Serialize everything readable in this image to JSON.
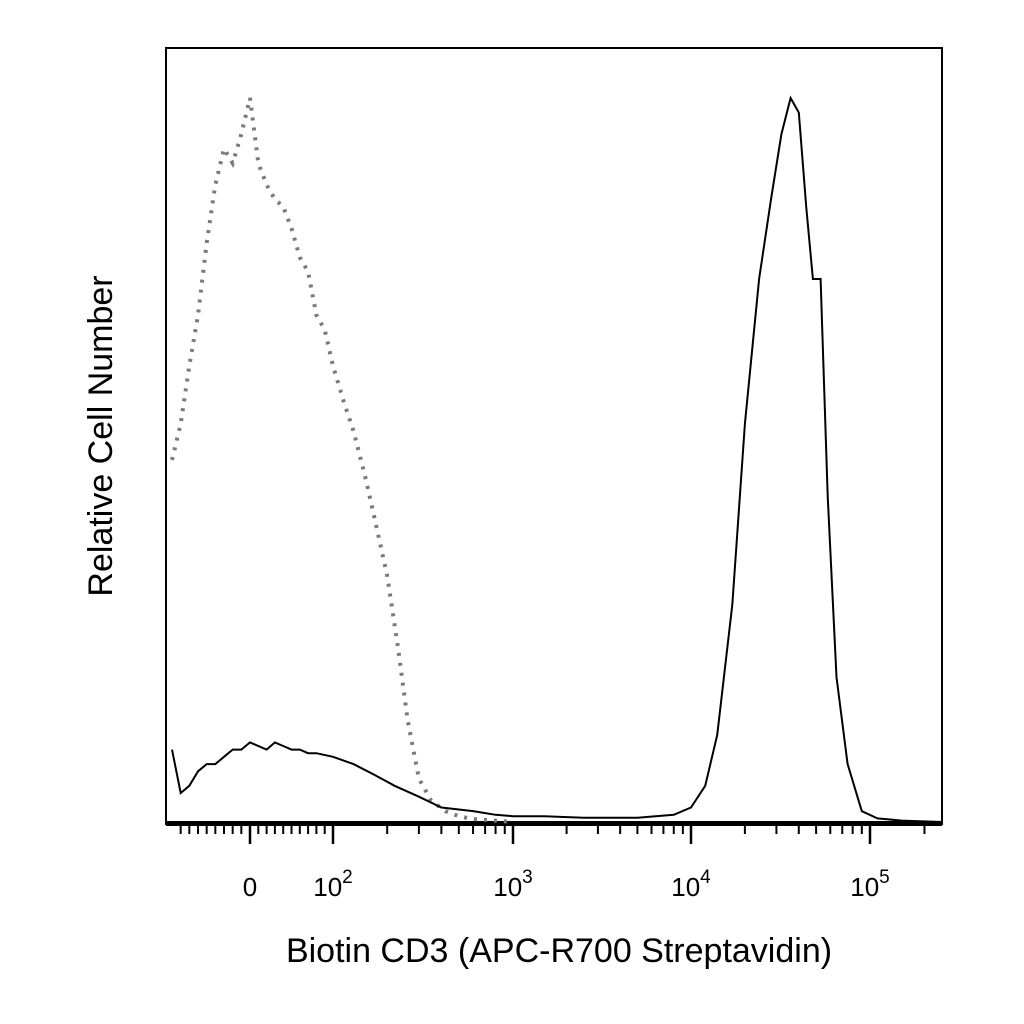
{
  "chart_data": {
    "type": "line",
    "title": "",
    "xlabel": "Biotin CD3 (APC-R700 Streptavidin)",
    "ylabel": "Relative Cell Number",
    "x_scale": "biexponential",
    "xlim": [
      -90,
      250000
    ],
    "ylim": [
      0,
      100
    ],
    "grid": false,
    "legend": "none",
    "x_ticks": [
      {
        "value": 0,
        "base": "0",
        "exp": ""
      },
      {
        "value": 100,
        "base": "10",
        "exp": "2"
      },
      {
        "value": 1000,
        "base": "10",
        "exp": "3"
      },
      {
        "value": 10000,
        "base": "10",
        "exp": "4"
      },
      {
        "value": 100000,
        "base": "10",
        "exp": "5"
      }
    ],
    "series": [
      {
        "style": "dotted",
        "color": "#7a7a7a",
        "x": [
          -90,
          -80,
          -70,
          -60,
          -50,
          -40,
          -30,
          -20,
          -10,
          0,
          10,
          20,
          30,
          40,
          50,
          60,
          70,
          80,
          90,
          100,
          115,
          130,
          150,
          170,
          200,
          230,
          260,
          300,
          350,
          420,
          500,
          600,
          800,
          1000
        ],
        "y": [
          50,
          55,
          63,
          70,
          80,
          88,
          93,
          91,
          95,
          100,
          91,
          88,
          86,
          85,
          82,
          78,
          76,
          70,
          68,
          63,
          58,
          54,
          48,
          42,
          34,
          24,
          14,
          6,
          3,
          1.5,
          0.8,
          0.4,
          0.2,
          0
        ]
      },
      {
        "style": "solid",
        "color": "#000000",
        "x": [
          -90,
          -80,
          -70,
          -60,
          -50,
          -40,
          -30,
          -20,
          -10,
          0,
          10,
          20,
          30,
          40,
          50,
          60,
          70,
          80,
          100,
          130,
          170,
          220,
          300,
          400,
          600,
          800,
          1000,
          1500,
          2500,
          5000,
          8000,
          10000,
          12000,
          14000,
          17000,
          20000,
          24000,
          28000,
          32000,
          36000,
          40000,
          44000,
          48000,
          53000,
          58000,
          65000,
          75000,
          90000,
          110000,
          150000,
          250000
        ],
        "y": [
          10,
          4,
          5,
          7,
          8,
          8,
          9,
          10,
          10,
          11,
          10.5,
          10,
          11,
          10.5,
          10,
          10,
          9.5,
          9.5,
          9,
          8,
          6.5,
          5,
          3.5,
          2,
          1.5,
          1,
          0.8,
          0.8,
          0.6,
          0.6,
          1,
          2,
          5,
          12,
          30,
          55,
          75,
          86,
          95,
          100,
          98,
          85,
          75,
          75,
          45,
          20,
          8,
          1.5,
          0.5,
          0.2,
          0
        ]
      }
    ]
  }
}
